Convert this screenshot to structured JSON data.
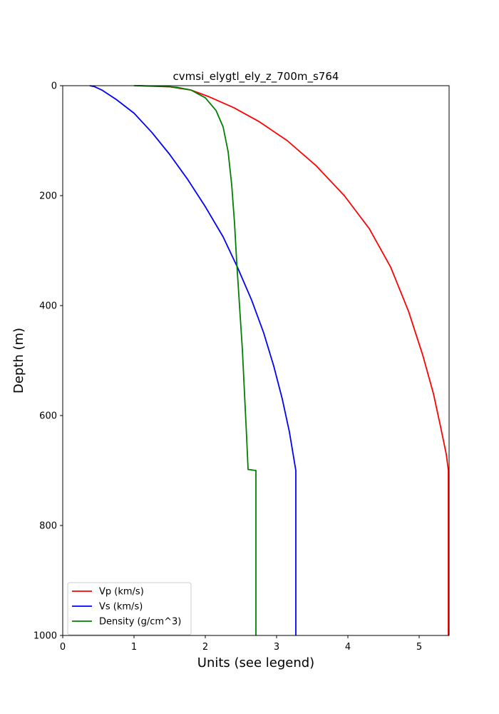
{
  "chart_data": {
    "type": "line",
    "title": "cvmsi_elygtl_ely_z_700m_s764",
    "xlabel": "Units (see legend)",
    "ylabel": "Depth (m)",
    "xlim": [
      0,
      5.42
    ],
    "ylim": [
      1000,
      0
    ],
    "xticks": [
      0,
      1,
      2,
      3,
      4,
      5
    ],
    "yticks": [
      0,
      200,
      400,
      600,
      800,
      1000
    ],
    "legend_position": "lower-left",
    "series": [
      {
        "name": "Vp (km/s)",
        "color": "#ff0000",
        "points": [
          [
            1.05,
            0
          ],
          [
            1.5,
            2
          ],
          [
            1.8,
            8
          ],
          [
            2.05,
            20
          ],
          [
            2.4,
            40
          ],
          [
            2.75,
            65
          ],
          [
            3.15,
            100
          ],
          [
            3.55,
            145
          ],
          [
            3.95,
            200
          ],
          [
            4.3,
            260
          ],
          [
            4.6,
            330
          ],
          [
            4.85,
            410
          ],
          [
            5.05,
            490
          ],
          [
            5.2,
            560
          ],
          [
            5.3,
            620
          ],
          [
            5.38,
            670
          ],
          [
            5.41,
            700
          ],
          [
            5.41,
            1000
          ]
        ]
      },
      {
        "name": "Vs (km/s)",
        "color": "#0000ff",
        "points": [
          [
            0.38,
            0
          ],
          [
            0.45,
            2
          ],
          [
            0.55,
            8
          ],
          [
            0.75,
            25
          ],
          [
            1.0,
            50
          ],
          [
            1.25,
            85
          ],
          [
            1.5,
            125
          ],
          [
            1.75,
            170
          ],
          [
            2.0,
            220
          ],
          [
            2.25,
            275
          ],
          [
            2.45,
            330
          ],
          [
            2.65,
            390
          ],
          [
            2.82,
            450
          ],
          [
            2.96,
            510
          ],
          [
            3.08,
            570
          ],
          [
            3.18,
            630
          ],
          [
            3.27,
            700
          ],
          [
            3.27,
            1000
          ]
        ]
      },
      {
        "name": "Density (g/cm^3)",
        "color": "#008000",
        "points": [
          [
            1.0,
            0
          ],
          [
            1.4,
            1
          ],
          [
            1.6,
            3
          ],
          [
            1.8,
            8
          ],
          [
            2.0,
            22
          ],
          [
            2.15,
            45
          ],
          [
            2.25,
            75
          ],
          [
            2.32,
            120
          ],
          [
            2.37,
            180
          ],
          [
            2.41,
            250
          ],
          [
            2.44,
            320
          ],
          [
            2.48,
            400
          ],
          [
            2.52,
            480
          ],
          [
            2.55,
            560
          ],
          [
            2.58,
            640
          ],
          [
            2.6,
            698
          ],
          [
            2.71,
            700
          ],
          [
            2.71,
            1000
          ]
        ]
      }
    ]
  }
}
